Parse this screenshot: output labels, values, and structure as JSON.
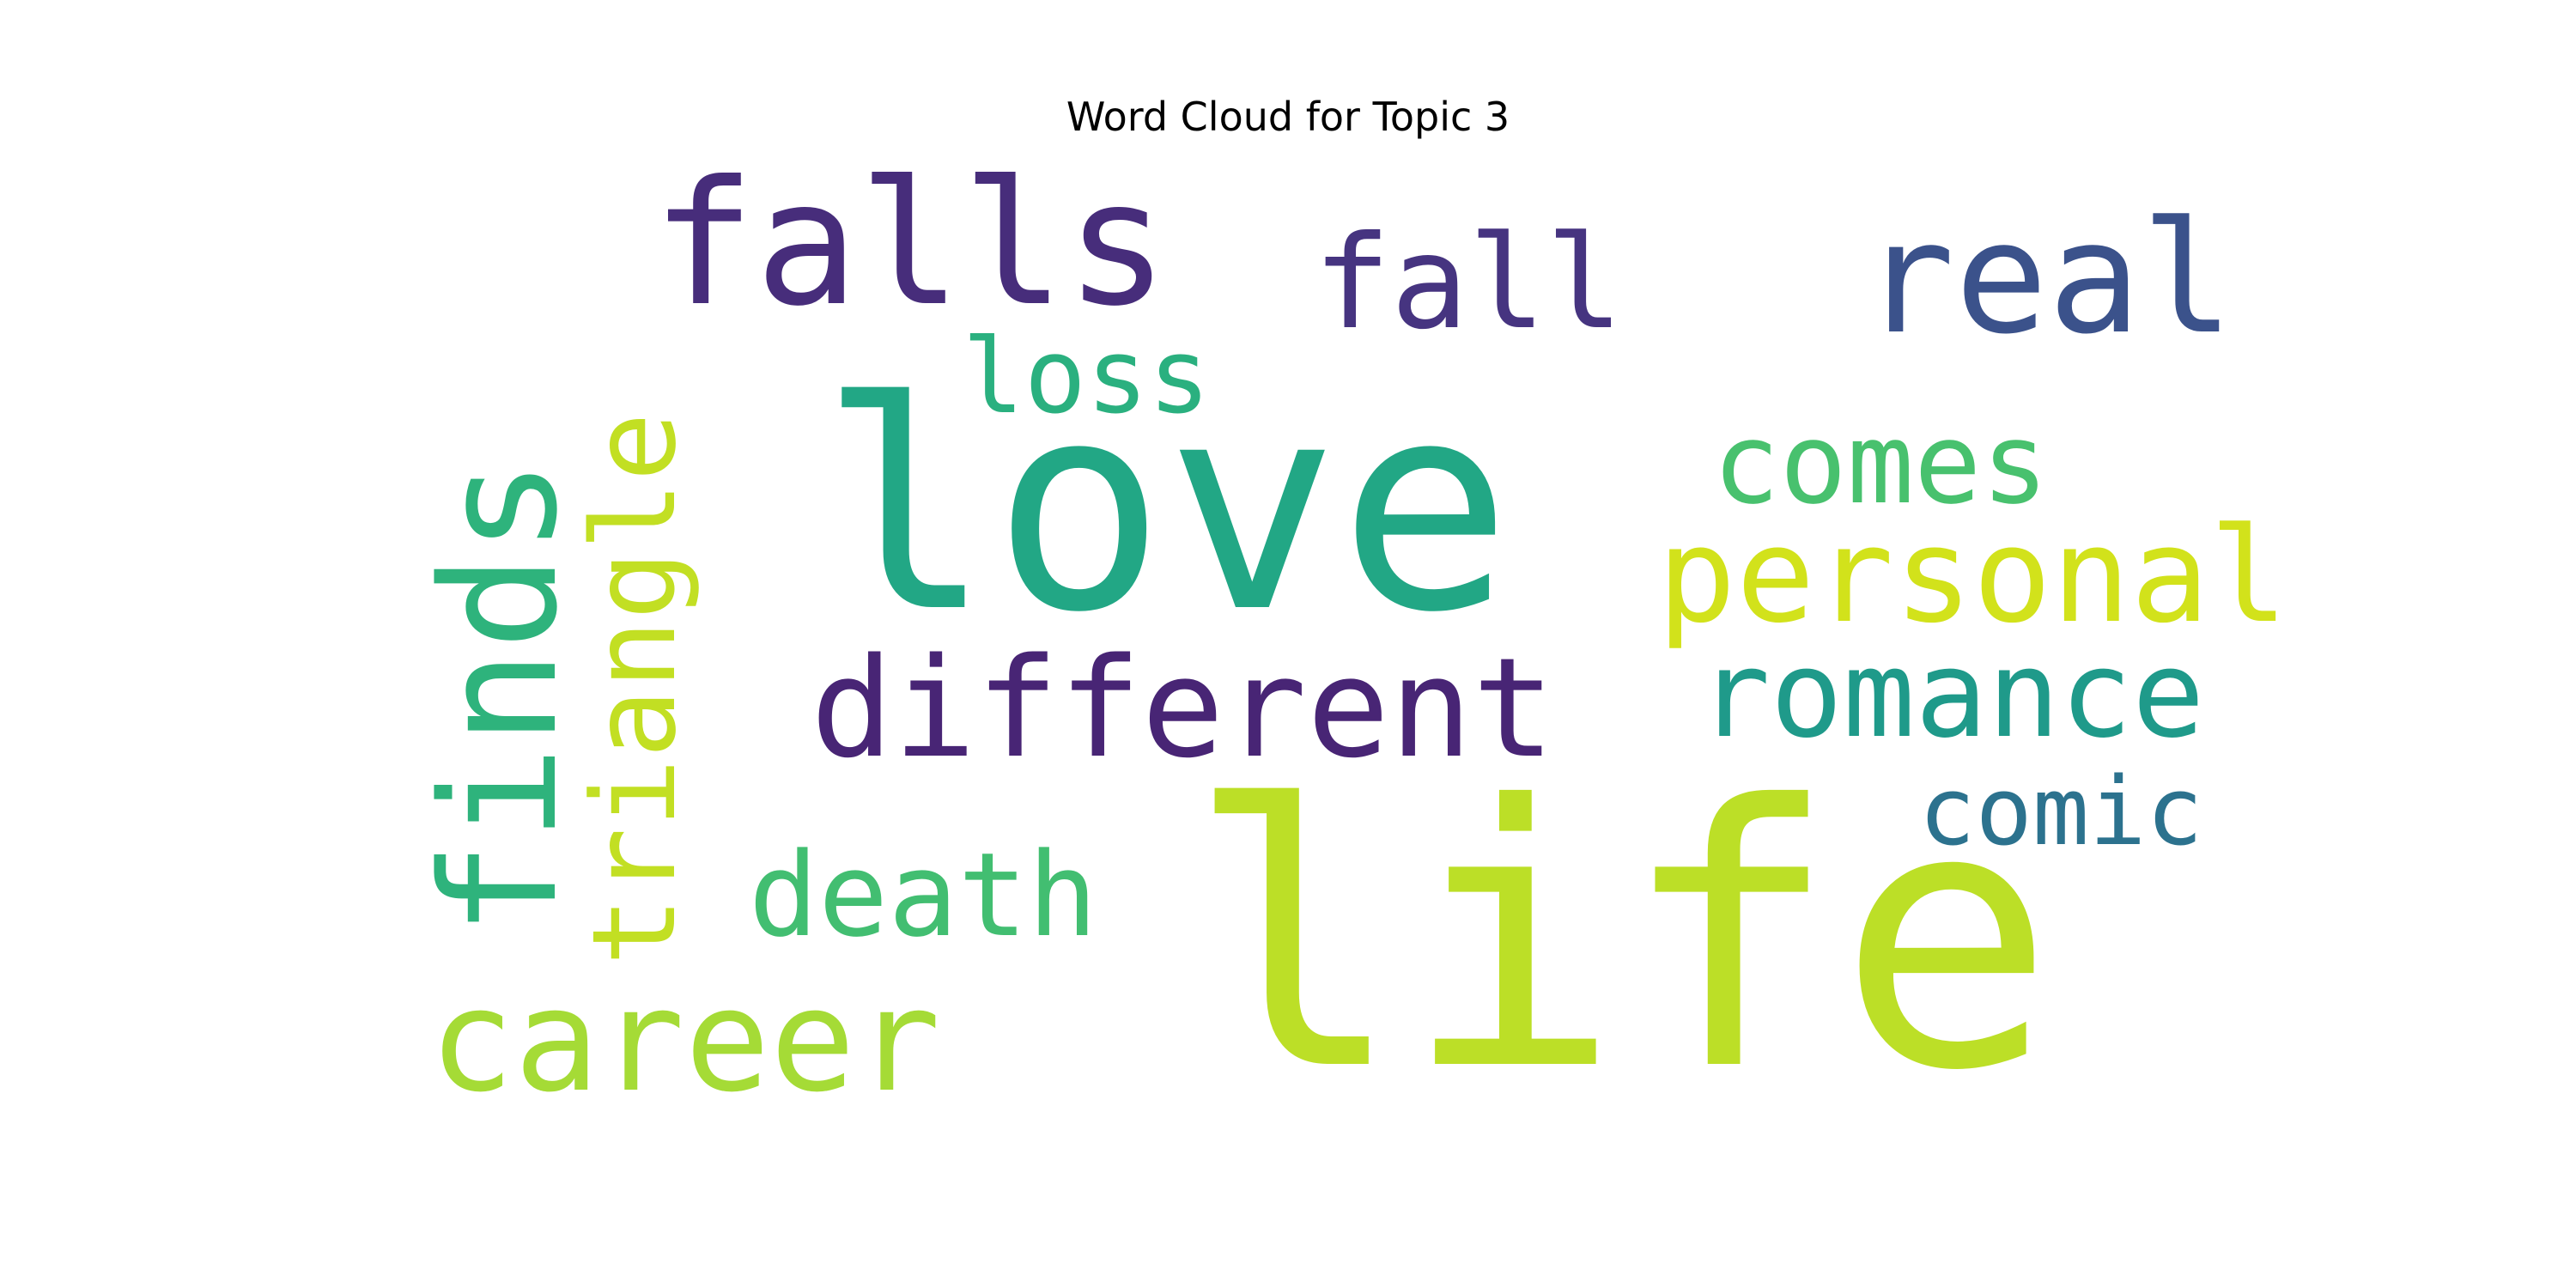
{
  "title": "Word Cloud for Topic 3",
  "words": [
    {
      "text": "life",
      "color": "#bcdf27"
    },
    {
      "text": "love",
      "color": "#22a785"
    },
    {
      "text": "falls",
      "color": "#472d7b"
    },
    {
      "text": "fall",
      "color": "#463480"
    },
    {
      "text": "real",
      "color": "#3b528b"
    },
    {
      "text": "loss",
      "color": "#2ab07f"
    },
    {
      "text": "comes",
      "color": "#48c16e"
    },
    {
      "text": "personal",
      "color": "#d2e21b"
    },
    {
      "text": "different",
      "color": "#482575"
    },
    {
      "text": "romance",
      "color": "#1f9a8a"
    },
    {
      "text": "finds",
      "color": "#2eb37c"
    },
    {
      "text": "triangle",
      "color": "#c2df23"
    },
    {
      "text": "comic",
      "color": "#2c728e"
    },
    {
      "text": "death",
      "color": "#42be71"
    },
    {
      "text": "career",
      "color": "#a5db36"
    }
  ]
}
